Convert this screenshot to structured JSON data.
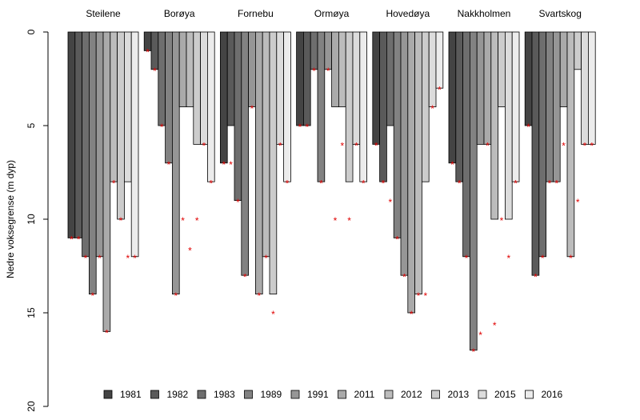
{
  "chart_data": {
    "type": "bar",
    "y_label": "Nedre voksegrense (m dyp)",
    "categories": [
      "Steilene",
      "Borøya",
      "Fornebu",
      "Ormøya",
      "Hovedøya",
      "Nakkholmen",
      "Svartskog"
    ],
    "ylim": [
      0,
      20
    ],
    "yticks": [
      0,
      5,
      10,
      15,
      20
    ],
    "y_reversed": true,
    "marker": "*",
    "marker_color": "#e00000",
    "series": [
      {
        "name": "1981",
        "color": "#444444",
        "values": [
          11,
          1,
          7,
          5,
          6,
          7,
          5
        ],
        "marker_values": [
          11,
          1,
          7,
          5,
          6,
          7,
          5
        ]
      },
      {
        "name": "1982",
        "color": "#5a5a5a",
        "values": [
          11,
          2,
          5,
          5,
          8,
          8,
          13
        ],
        "marker_values": [
          11,
          2,
          7,
          5,
          8,
          8,
          13
        ]
      },
      {
        "name": "1983",
        "color": "#6e6e6e",
        "values": [
          12,
          5,
          9,
          2,
          5,
          12,
          12
        ],
        "marker_values": [
          12,
          5,
          9,
          2,
          9,
          12,
          12
        ]
      },
      {
        "name": "1989",
        "color": "#828282",
        "values": [
          14,
          7,
          13,
          8,
          11,
          17,
          8
        ],
        "marker_values": [
          14,
          7,
          13,
          8,
          11,
          17,
          8
        ]
      },
      {
        "name": "1991",
        "color": "#969696",
        "values": [
          12,
          14,
          4,
          2,
          13,
          6,
          8
        ],
        "marker_values": [
          12,
          14,
          4,
          2,
          13,
          16.1,
          8
        ]
      },
      {
        "name": "2011",
        "color": "#aaaaaa",
        "values": [
          16,
          4,
          14,
          4,
          15,
          6,
          4
        ],
        "marker_values": [
          16,
          10,
          14,
          10,
          15,
          6,
          6
        ]
      },
      {
        "name": "2012",
        "color": "#bcbcbc",
        "values": [
          8,
          4,
          12,
          4,
          14,
          10,
          12
        ],
        "marker_values": [
          8,
          11.6,
          12,
          6,
          14,
          15.6,
          12
        ]
      },
      {
        "name": "2013",
        "color": "#cccccc",
        "values": [
          10,
          6,
          14,
          8,
          8,
          4,
          2
        ],
        "marker_values": [
          10,
          10,
          15,
          10,
          14,
          10,
          9
        ]
      },
      {
        "name": "2015",
        "color": "#dcdcdc",
        "values": [
          8,
          6,
          6,
          6,
          4,
          10,
          6
        ],
        "marker_values": [
          12,
          6,
          6,
          6,
          4,
          12,
          6
        ]
      },
      {
        "name": "2016",
        "color": "#ececec",
        "values": [
          12,
          8,
          8,
          8,
          3,
          8,
          6
        ],
        "marker_values": [
          12,
          8,
          8,
          8,
          3,
          8,
          6
        ]
      }
    ]
  }
}
